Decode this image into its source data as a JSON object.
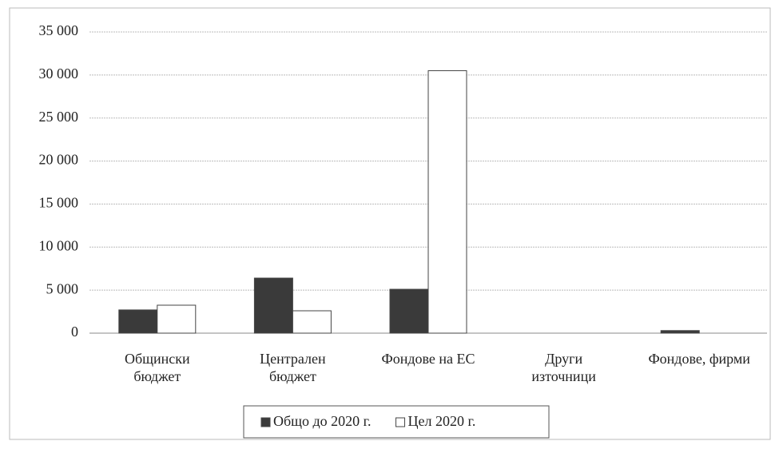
{
  "chart_data": {
    "type": "bar",
    "categories": [
      "Общински\nбюджет",
      "Централен\nбюджет",
      "Фондове на ЕС",
      "Други\nизточници",
      "Фондове, фирми"
    ],
    "series": [
      {
        "name": "Общо до 2020 г.",
        "color": "#3a3a3a",
        "values": [
          2700,
          6400,
          5100,
          0,
          300
        ]
      },
      {
        "name": "Цел 2020 г.",
        "color": "#ffffff",
        "values": [
          3250,
          2600,
          30500,
          0,
          0
        ]
      }
    ],
    "ylim": [
      0,
      35000
    ],
    "yticks": [
      {
        "value": 0,
        "label": "0"
      },
      {
        "value": 5000,
        "label": "5 000"
      },
      {
        "value": 10000,
        "label": "10 000"
      },
      {
        "value": 15000,
        "label": "15 000"
      },
      {
        "value": 20000,
        "label": "20 000"
      },
      {
        "value": 25000,
        "label": "25 000"
      },
      {
        "value": 30000,
        "label": "30 000"
      },
      {
        "value": 35000,
        "label": "35 000"
      }
    ],
    "grid": true,
    "legend": "bottom"
  }
}
